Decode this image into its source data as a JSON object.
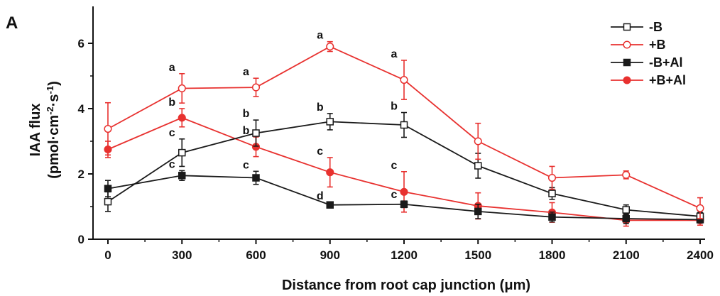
{
  "panel_label": "A",
  "chart_data": {
    "type": "line",
    "x": [
      0,
      300,
      600,
      900,
      1200,
      1500,
      1800,
      2100,
      2400
    ],
    "xlabel": "Distance from root cap junction (μm)",
    "ylabel_line1": "IAA flux",
    "ylabel_line2_parts": [
      "(pmol·cm",
      "-2",
      "·s",
      "-1",
      ")"
    ],
    "xlim": [
      0,
      2400
    ],
    "ylim": [
      0,
      7
    ],
    "yticks": [
      0,
      2,
      4,
      6
    ],
    "xticks": [
      0,
      300,
      600,
      900,
      1200,
      1500,
      1800,
      2100,
      2400
    ],
    "grid": false,
    "legend_position": "top-right",
    "series": [
      {
        "name": "-B",
        "color": "#1a1a1a",
        "marker": "open-square",
        "values": [
          1.15,
          2.65,
          3.25,
          3.6,
          3.5,
          2.25,
          1.4,
          0.9,
          0.7
        ],
        "errors": [
          0.3,
          0.42,
          0.4,
          0.25,
          0.38,
          0.38,
          0.18,
          0.15,
          0.12
        ],
        "labels": [
          "",
          "c",
          "b",
          "b",
          "b",
          "",
          "",
          "",
          ""
        ]
      },
      {
        "name": "+B",
        "color": "#e8312f",
        "marker": "open-circle",
        "values": [
          3.38,
          4.62,
          4.65,
          5.9,
          4.88,
          3.0,
          1.88,
          1.97,
          0.95
        ],
        "errors": [
          0.8,
          0.45,
          0.28,
          0.15,
          0.6,
          0.55,
          0.35,
          0.12,
          0.32
        ],
        "labels": [
          "",
          "a",
          "a",
          "a",
          "a",
          "",
          "",
          "",
          ""
        ]
      },
      {
        "name": "-B+Al",
        "color": "#1a1a1a",
        "marker": "filled-square",
        "values": [
          1.55,
          1.95,
          1.88,
          1.05,
          1.07,
          0.85,
          0.68,
          0.63,
          0.6
        ],
        "errors": [
          0.25,
          0.15,
          0.2,
          0.08,
          0.1,
          0.22,
          0.15,
          0.15,
          0.1
        ],
        "labels": [
          "",
          "c",
          "c",
          "d",
          "c",
          "",
          "",
          "",
          ""
        ]
      },
      {
        "name": "+B+Al",
        "color": "#e8312f",
        "marker": "filled-circle",
        "values": [
          2.75,
          3.72,
          2.83,
          2.05,
          1.45,
          1.02,
          0.82,
          0.58,
          0.58
        ],
        "errors": [
          0.25,
          0.28,
          0.3,
          0.45,
          0.62,
          0.4,
          0.3,
          0.18,
          0.15
        ],
        "labels": [
          "",
          "b",
          "b",
          "c",
          "c",
          "",
          "",
          "",
          ""
        ]
      }
    ]
  }
}
